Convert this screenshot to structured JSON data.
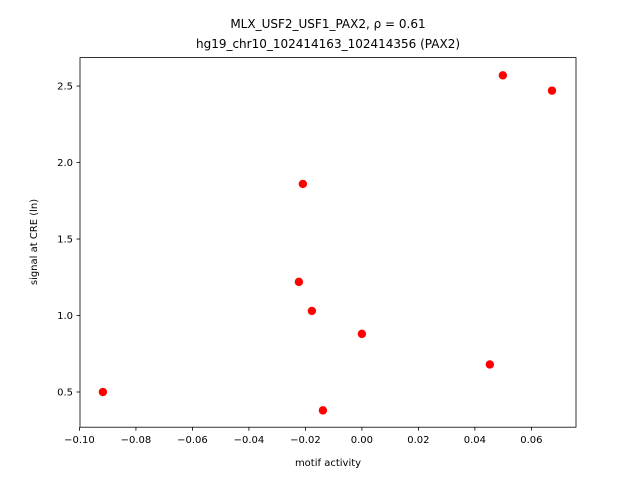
{
  "chart_data": {
    "type": "scatter",
    "title": "MLX_USF2_USF1_PAX2, ρ = 0.61",
    "subtitle": "hg19_chr10_102414163_102414356 (PAX2)",
    "x_label": "motif activity",
    "y_label": "signal at CRE (ln)",
    "color": "#ff0000",
    "x": [
      -0.0917,
      -0.0138,
      0.0,
      -0.0177,
      -0.0223,
      -0.0209,
      0.0453,
      0.0499,
      0.0673
    ],
    "values": [
      0.5,
      0.38,
      0.88,
      1.03,
      1.22,
      1.86,
      0.68,
      2.57,
      2.47
    ],
    "xlim": [
      -0.0998,
      0.0758
    ],
    "ylim": [
      0.27,
      2.686
    ],
    "xticks": [
      {
        "value": -0.1,
        "label": "−0.10"
      },
      {
        "value": -0.08,
        "label": "−0.08"
      },
      {
        "value": -0.06,
        "label": "−0.06"
      },
      {
        "value": -0.04,
        "label": "−0.04"
      },
      {
        "value": -0.02,
        "label": "−0.02"
      },
      {
        "value": 0,
        "label": "0.00"
      },
      0.02,
      0.04,
      0.06
    ],
    "yticks": [
      0.5,
      {
        "value": 1,
        "label": "1.0"
      },
      1.5,
      {
        "value": 2,
        "label": "2.0"
      },
      2.5
    ]
  }
}
